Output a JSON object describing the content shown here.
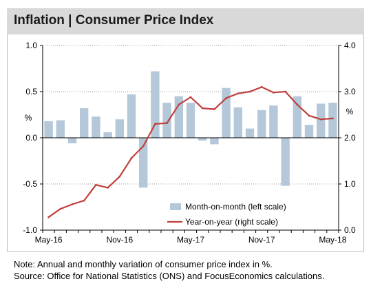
{
  "title": "Inflation | Consumer Price Index",
  "note": "Note: Annual and monthly variation of consumer price index in %.",
  "source": "Source: Office for National Statistics (ONS) and FocusEconomics calculations.",
  "chart_data": {
    "type": "bar+line",
    "title": "Inflation | Consumer Price Index",
    "categories": [
      "May-16",
      "Jun-16",
      "Jul-16",
      "Aug-16",
      "Sep-16",
      "Oct-16",
      "Nov-16",
      "Dec-16",
      "Jan-17",
      "Feb-17",
      "Mar-17",
      "Apr-17",
      "May-17",
      "Jun-17",
      "Jul-17",
      "Aug-17",
      "Sep-17",
      "Oct-17",
      "Nov-17",
      "Dec-17",
      "Jan-18",
      "Feb-18",
      "Mar-18",
      "Apr-18",
      "May-18"
    ],
    "x_tick_labels": [
      "May-16",
      "Nov-16",
      "May-17",
      "Nov-17",
      "May-18"
    ],
    "left_axis": {
      "ylim": [
        -1.0,
        1.0
      ],
      "ticks": [
        "1.0",
        "0.5",
        "0.0",
        "-0.5",
        "-1.0"
      ],
      "unit_label": "%"
    },
    "right_axis": {
      "ylim": [
        0.0,
        4.0
      ],
      "ticks": [
        "4.0",
        "3.0",
        "2.0",
        "1.0",
        "0.0"
      ],
      "unit_label": "%"
    },
    "series": [
      {
        "name": "Month-on-month (left scale)",
        "type": "bar",
        "axis": "left",
        "color": "#b4c8d9",
        "values": [
          0.18,
          0.19,
          -0.06,
          0.32,
          0.23,
          0.06,
          0.2,
          0.47,
          -0.54,
          0.72,
          0.38,
          0.45,
          0.38,
          -0.03,
          -0.07,
          0.54,
          0.33,
          0.1,
          0.3,
          0.35,
          -0.52,
          0.45,
          0.14,
          0.37,
          0.38
        ]
      },
      {
        "name": "Year-on-year (right scale)",
        "type": "line",
        "axis": "right",
        "color": "#c0403c",
        "values": [
          0.28,
          0.46,
          0.56,
          0.64,
          0.98,
          0.92,
          1.16,
          1.56,
          1.82,
          2.3,
          2.32,
          2.72,
          2.88,
          2.64,
          2.62,
          2.86,
          2.96,
          3.0,
          3.1,
          2.98,
          3.0,
          2.72,
          2.48,
          2.4,
          2.42
        ]
      }
    ],
    "legend_position": "bottom-right"
  }
}
